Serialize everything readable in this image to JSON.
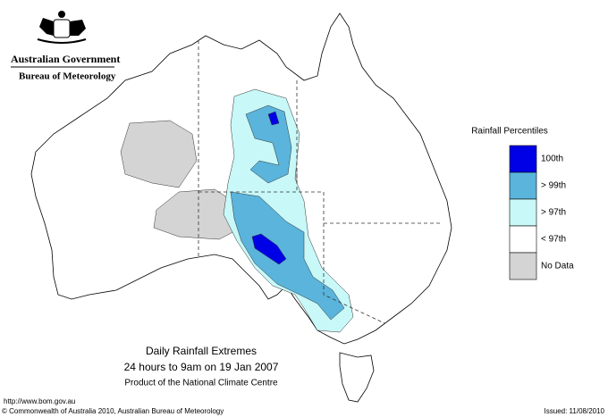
{
  "header": {
    "title": "Australian Government",
    "subtitle": "Bureau of Meteorology"
  },
  "legend": {
    "title": "Rainfall Percentiles",
    "items": [
      {
        "label": "100th",
        "color": "#0000e6"
      },
      {
        "label": "> 99th",
        "color": "#5ab4dc"
      },
      {
        "label": "> 97th",
        "color": "#c8f8f8"
      },
      {
        "label": "< 97th",
        "color": "#ffffff"
      },
      {
        "label": "No Data",
        "color": "#d4d4d4"
      }
    ]
  },
  "caption": {
    "title": "Daily Rainfall Extremes",
    "period": "24 hours to 9am on 19 Jan 2007",
    "product": "Product of the National Climate Centre"
  },
  "footer": {
    "url": "http://www.bom.gov.au",
    "copyright": "© Commonwealth of Australia 2010, Australian Bureau of Meteorology",
    "issued": "Issued: 11/08/2010"
  }
}
